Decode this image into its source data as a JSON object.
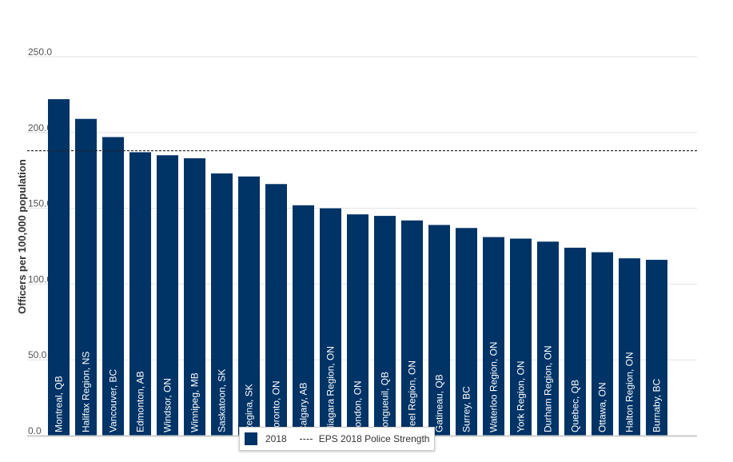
{
  "chart_data": {
    "type": "bar",
    "ylabel": "Officers per 100,000 population",
    "ylim": [
      0,
      250
    ],
    "yticks": [
      "0.0",
      "50.0",
      "100.0",
      "150.0",
      "200.0",
      "250.0"
    ],
    "grid": true,
    "legend_position": "bottom-center",
    "categories": [
      "Montreal, QB",
      "Halifax Region, NS",
      "Vancouver, BC",
      "Edmonton, AB",
      "Windsor, ON",
      "Winnipeg, MB",
      "Saskatoon, SK",
      "Regina, SK",
      "Toronto, ON",
      "Calgary, AB",
      "Niagara Region, ON",
      "London, ON",
      "Longueuil, QB",
      "Peel Region, ON",
      "Gatineau, QB",
      "Surrey, BC",
      "Waterloo Region, ON",
      "York Region, ON",
      "Durham Region, ON",
      "Quebec, QB",
      "Ottawa, ON",
      "Halton Region, ON",
      "Burnaby, BC"
    ],
    "series": [
      {
        "name": "2018",
        "color": "#003366",
        "values": [
          222,
          209,
          197,
          187,
          185,
          183,
          173,
          171,
          166,
          152,
          150,
          146,
          145,
          142,
          139,
          137,
          131,
          130,
          128,
          124,
          121,
          117,
          116
        ]
      }
    ],
    "reference_line": {
      "name": "EPS 2018 Police Strength",
      "value": 188
    }
  }
}
